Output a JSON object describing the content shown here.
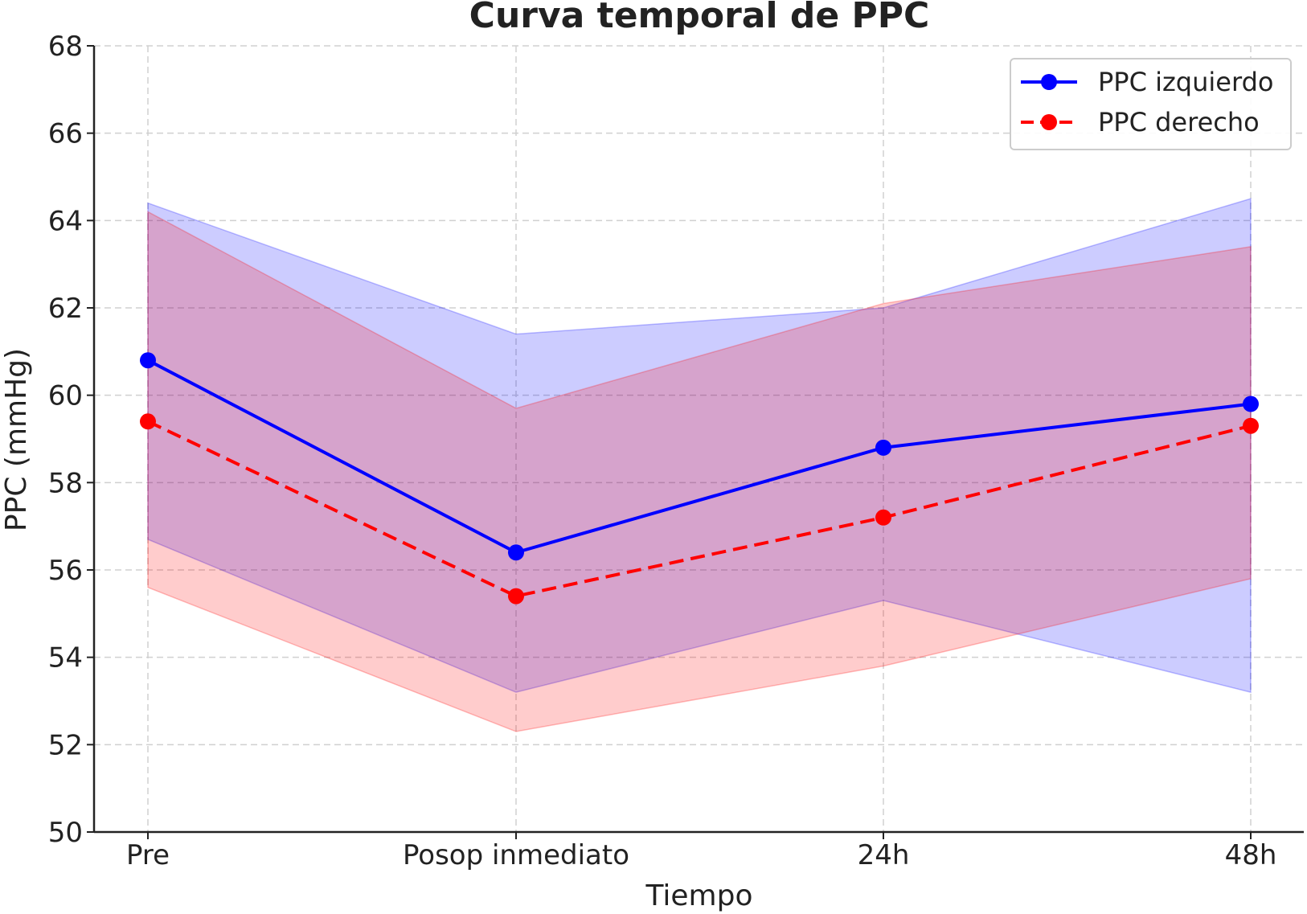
{
  "chart_data": {
    "type": "line",
    "title": "Curva temporal de PPC",
    "xlabel": "Tiempo",
    "ylabel": "PPC (mmHg)",
    "categories": [
      "Pre",
      "Posop inmediato",
      "24h",
      "48h"
    ],
    "ylim": [
      50,
      68
    ],
    "yticks": [
      50,
      52,
      54,
      56,
      58,
      60,
      62,
      64,
      66,
      68
    ],
    "grid": true,
    "legend_position": "top-right",
    "series": [
      {
        "name": "PPC izquierdo",
        "color": "#0000ff",
        "line_style": "solid",
        "values": [
          60.8,
          56.4,
          58.8,
          59.8
        ],
        "band_upper": [
          64.4,
          61.4,
          62.0,
          64.5
        ],
        "band_lower": [
          56.7,
          53.2,
          55.3,
          53.2
        ]
      },
      {
        "name": "PPC derecho",
        "color": "#ff0000",
        "line_style": "dashed",
        "values": [
          59.4,
          55.4,
          57.2,
          59.3
        ],
        "band_upper": [
          64.2,
          59.7,
          62.1,
          63.4
        ],
        "band_lower": [
          55.6,
          52.3,
          53.8,
          55.8
        ]
      }
    ]
  }
}
